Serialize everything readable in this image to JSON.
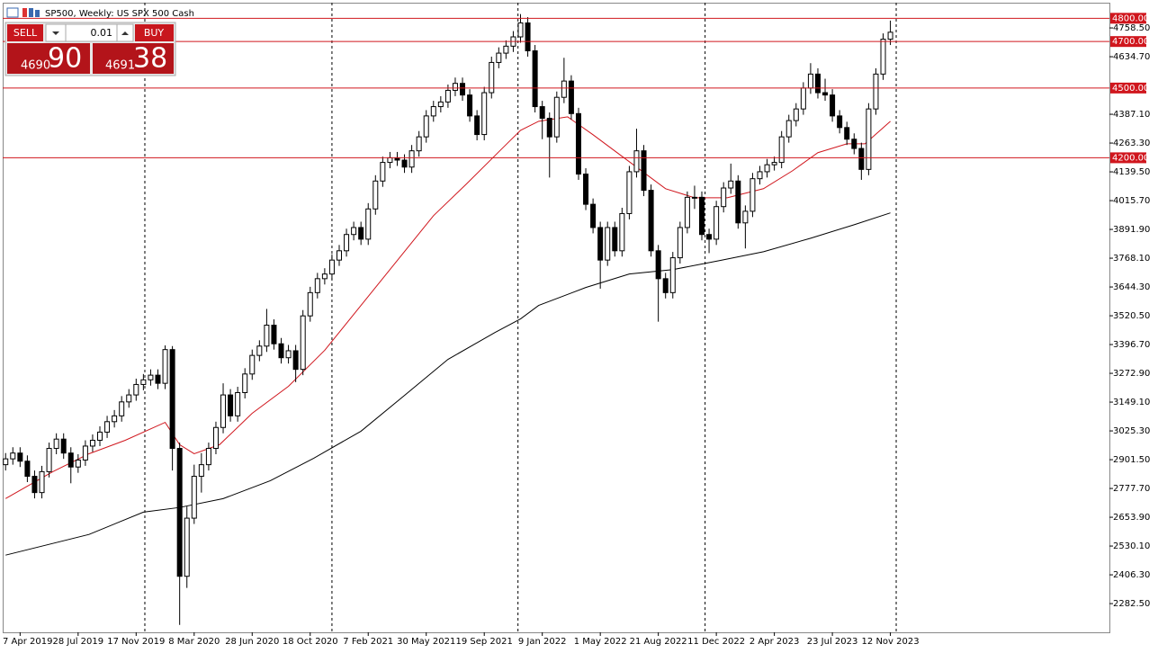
{
  "header": {
    "title": "SP500, Weekly:  US SPX 500 Cash"
  },
  "trade_panel": {
    "sell": "SELL",
    "buy": "BUY",
    "volume": "0.01",
    "bid_big": "4690",
    "bid_small": "90",
    "ask_big": "4691",
    "ask_small": "38"
  },
  "chart_data": {
    "type": "candlestick",
    "xlim": [
      -4.8,
      300.4
    ],
    "ylim": [
      2159,
      4867
    ],
    "xticks": [
      {
        "value": 0,
        "label": "7 Apr 2019"
      },
      {
        "value": 16,
        "label": "28 Jul 2019"
      },
      {
        "value": 32,
        "label": "17 Nov 2019"
      },
      {
        "value": 48,
        "label": "8 Mar 2020"
      },
      {
        "value": 64,
        "label": "28 Jun 2020"
      },
      {
        "value": 80,
        "label": "18 Oct 2020"
      },
      {
        "value": 96,
        "label": "7 Feb 2021"
      },
      {
        "value": 112,
        "label": "30 May 2021"
      },
      {
        "value": 128,
        "label": "19 Sep 2021"
      },
      {
        "value": 144,
        "label": "9 Jan 2022"
      },
      {
        "value": 160,
        "label": "1 May 2022"
      },
      {
        "value": 176,
        "label": "21 Aug 2022"
      },
      {
        "value": 192,
        "label": "11 Dec 2022"
      },
      {
        "value": 208,
        "label": "2 Apr 2023"
      },
      {
        "value": 224,
        "label": "23 Jul 2023"
      },
      {
        "value": 240,
        "label": "12 Nov 2023"
      }
    ],
    "yticks": [
      {
        "value": 4758.5,
        "label": "4758.50"
      },
      {
        "value": 4634.7,
        "label": "4634.70"
      },
      {
        "value": 4387.1,
        "label": "4387.10"
      },
      {
        "value": 4263.3,
        "label": "4263.30"
      },
      {
        "value": 4139.5,
        "label": "4139.50"
      },
      {
        "value": 4015.7,
        "label": "4015.70"
      },
      {
        "value": 3891.9,
        "label": "3891.90"
      },
      {
        "value": 3768.1,
        "label": "3768.10"
      },
      {
        "value": 3644.3,
        "label": "3644.30"
      },
      {
        "value": 3520.5,
        "label": "3520.50"
      },
      {
        "value": 3396.7,
        "label": "3396.70"
      },
      {
        "value": 3272.9,
        "label": "3272.90"
      },
      {
        "value": 3149.1,
        "label": "3149.10"
      },
      {
        "value": 3025.3,
        "label": "3025.30"
      },
      {
        "value": 2901.5,
        "label": "2901.50"
      },
      {
        "value": 2777.7,
        "label": "2777.70"
      },
      {
        "value": 2653.9,
        "label": "2653.90"
      },
      {
        "value": 2530.1,
        "label": "2530.10"
      },
      {
        "value": 2406.3,
        "label": "2406.30"
      },
      {
        "value": 2282.5,
        "label": "2282.50"
      }
    ],
    "levels": [
      {
        "value": 4800,
        "label": "4800.00"
      },
      {
        "value": 4700,
        "label": "4700.00"
      },
      {
        "value": 4500,
        "label": "4500.00"
      },
      {
        "value": 4200,
        "label": "4200.00"
      }
    ],
    "level_color": "#d0161d",
    "separators": [
      34.4,
      86,
      137.3,
      188.9,
      241.6
    ],
    "x": [
      -4,
      -2,
      0,
      2,
      4,
      6,
      8,
      10,
      12,
      14,
      16,
      18,
      20,
      22,
      24,
      26,
      28,
      30,
      32,
      34,
      36,
      38,
      40,
      42,
      44,
      46,
      48,
      50,
      52,
      54,
      56,
      58,
      60,
      62,
      64,
      66,
      68,
      70,
      72,
      74,
      76,
      78,
      80,
      82,
      84,
      86,
      88,
      90,
      92,
      94,
      96,
      98,
      100,
      102,
      104,
      106,
      108,
      110,
      112,
      114,
      116,
      118,
      120,
      122,
      124,
      126,
      128,
      130,
      132,
      134,
      136,
      138,
      140,
      142,
      144,
      146,
      148,
      150,
      152,
      154,
      156,
      158,
      160,
      162,
      164,
      166,
      168,
      170,
      172,
      174,
      176,
      178,
      180,
      182,
      184,
      186,
      188,
      190,
      192,
      194,
      196,
      198,
      200,
      202,
      204,
      206,
      208,
      210,
      212,
      214,
      216,
      218,
      220,
      222,
      224,
      226,
      228,
      230,
      232,
      234,
      236,
      238,
      240
    ],
    "ohlc": [
      [
        2880,
        2930,
        2855,
        2905
      ],
      [
        2905,
        2955,
        2880,
        2930
      ],
      [
        2930,
        2955,
        2870,
        2895
      ],
      [
        2895,
        2920,
        2805,
        2830
      ],
      [
        2830,
        2855,
        2735,
        2760
      ],
      [
        2760,
        2875,
        2735,
        2850
      ],
      [
        2850,
        2975,
        2825,
        2950
      ],
      [
        2950,
        3015,
        2925,
        2990
      ],
      [
        2990,
        3015,
        2905,
        2930
      ],
      [
        2930,
        2955,
        2800,
        2870
      ],
      [
        2870,
        2925,
        2845,
        2900
      ],
      [
        2900,
        2985,
        2875,
        2960
      ],
      [
        2960,
        3010,
        2935,
        2985
      ],
      [
        2985,
        3045,
        2960,
        3020
      ],
      [
        3020,
        3090,
        2995,
        3065
      ],
      [
        3065,
        3115,
        3040,
        3090
      ],
      [
        3090,
        3175,
        3065,
        3150
      ],
      [
        3150,
        3205,
        3125,
        3180
      ],
      [
        3180,
        3250,
        3155,
        3225
      ],
      [
        3225,
        3270,
        3200,
        3245
      ],
      [
        3245,
        3290,
        3220,
        3265
      ],
      [
        3265,
        3290,
        3205,
        3230
      ],
      [
        3230,
        3393,
        3205,
        3375
      ],
      [
        3375,
        3390,
        2855,
        2950
      ],
      [
        2950,
        2975,
        2191,
        2400
      ],
      [
        2400,
        2700,
        2350,
        2650
      ],
      [
        2650,
        2880,
        2625,
        2830
      ],
      [
        2830,
        2930,
        2760,
        2880
      ],
      [
        2880,
        2975,
        2855,
        2950
      ],
      [
        2950,
        3065,
        2925,
        3040
      ],
      [
        3040,
        3230,
        3015,
        3180
      ],
      [
        3180,
        3205,
        3065,
        3090
      ],
      [
        3090,
        3215,
        3065,
        3190
      ],
      [
        3190,
        3295,
        3165,
        3270
      ],
      [
        3270,
        3375,
        3245,
        3350
      ],
      [
        3350,
        3415,
        3325,
        3390
      ],
      [
        3390,
        3550,
        3365,
        3480
      ],
      [
        3480,
        3505,
        3375,
        3400
      ],
      [
        3400,
        3425,
        3315,
        3340
      ],
      [
        3340,
        3395,
        3315,
        3370
      ],
      [
        3370,
        3395,
        3235,
        3290
      ],
      [
        3290,
        3545,
        3265,
        3520
      ],
      [
        3520,
        3645,
        3495,
        3620
      ],
      [
        3620,
        3705,
        3595,
        3680
      ],
      [
        3680,
        3725,
        3655,
        3700
      ],
      [
        3700,
        3785,
        3675,
        3760
      ],
      [
        3760,
        3825,
        3735,
        3800
      ],
      [
        3800,
        3895,
        3775,
        3870
      ],
      [
        3870,
        3925,
        3845,
        3900
      ],
      [
        3900,
        3925,
        3825,
        3850
      ],
      [
        3850,
        4005,
        3825,
        3980
      ],
      [
        3980,
        4125,
        3955,
        4100
      ],
      [
        4100,
        4205,
        4075,
        4180
      ],
      [
        4180,
        4225,
        4155,
        4200
      ],
      [
        4200,
        4225,
        4165,
        4190
      ],
      [
        4190,
        4215,
        4135,
        4160
      ],
      [
        4160,
        4255,
        4135,
        4230
      ],
      [
        4230,
        4315,
        4205,
        4290
      ],
      [
        4290,
        4405,
        4265,
        4380
      ],
      [
        4380,
        4445,
        4355,
        4420
      ],
      [
        4420,
        4465,
        4395,
        4440
      ],
      [
        4440,
        4515,
        4415,
        4490
      ],
      [
        4490,
        4545,
        4465,
        4520
      ],
      [
        4520,
        4545,
        4445,
        4470
      ],
      [
        4470,
        4495,
        4355,
        4380
      ],
      [
        4380,
        4405,
        4275,
        4300
      ],
      [
        4300,
        4505,
        4275,
        4480
      ],
      [
        4480,
        4635,
        4455,
        4610
      ],
      [
        4610,
        4675,
        4585,
        4650
      ],
      [
        4650,
        4705,
        4625,
        4680
      ],
      [
        4680,
        4745,
        4655,
        4720
      ],
      [
        4720,
        4818,
        4695,
        4780
      ],
      [
        4780,
        4805,
        4635,
        4660
      ],
      [
        4660,
        4685,
        4395,
        4420
      ],
      [
        4420,
        4445,
        4280,
        4370
      ],
      [
        4370,
        4395,
        4115,
        4290
      ],
      [
        4290,
        4485,
        4265,
        4460
      ],
      [
        4460,
        4630,
        4435,
        4530
      ],
      [
        4530,
        4555,
        4365,
        4390
      ],
      [
        4390,
        4415,
        4105,
        4130
      ],
      [
        4130,
        4155,
        3975,
        4000
      ],
      [
        4000,
        4025,
        3875,
        3900
      ],
      [
        3900,
        3925,
        3637,
        3760
      ],
      [
        3760,
        3925,
        3735,
        3900
      ],
      [
        3900,
        3925,
        3775,
        3800
      ],
      [
        3800,
        3985,
        3775,
        3960
      ],
      [
        3960,
        4165,
        3935,
        4140
      ],
      [
        4140,
        4325,
        4115,
        4230
      ],
      [
        4230,
        4255,
        4035,
        4060
      ],
      [
        4060,
        4085,
        3775,
        3800
      ],
      [
        3800,
        3825,
        3495,
        3680
      ],
      [
        3680,
        3705,
        3595,
        3620
      ],
      [
        3620,
        3795,
        3595,
        3770
      ],
      [
        3770,
        3925,
        3745,
        3900
      ],
      [
        3900,
        4055,
        3875,
        4030
      ],
      [
        4030,
        4080,
        3980,
        4030
      ],
      [
        4030,
        4055,
        3845,
        3870
      ],
      [
        3870,
        3895,
        3790,
        3850
      ],
      [
        3850,
        4015,
        3825,
        3990
      ],
      [
        3990,
        4095,
        3965,
        4070
      ],
      [
        4070,
        4175,
        4045,
        4100
      ],
      [
        4100,
        4125,
        3895,
        3920
      ],
      [
        3920,
        3995,
        3810,
        3970
      ],
      [
        3970,
        4135,
        3945,
        4110
      ],
      [
        4110,
        4165,
        4085,
        4140
      ],
      [
        4140,
        4195,
        4115,
        4170
      ],
      [
        4170,
        4205,
        4145,
        4180
      ],
      [
        4180,
        4315,
        4155,
        4290
      ],
      [
        4290,
        4385,
        4265,
        4360
      ],
      [
        4360,
        4435,
        4335,
        4410
      ],
      [
        4410,
        4525,
        4385,
        4500
      ],
      [
        4500,
        4607,
        4475,
        4560
      ],
      [
        4560,
        4585,
        4455,
        4480
      ],
      [
        4480,
        4540,
        4445,
        4470
      ],
      [
        4470,
        4495,
        4355,
        4380
      ],
      [
        4380,
        4405,
        4305,
        4330
      ],
      [
        4330,
        4355,
        4255,
        4280
      ],
      [
        4280,
        4305,
        4215,
        4240
      ],
      [
        4240,
        4265,
        4105,
        4150
      ],
      [
        4150,
        4435,
        4125,
        4410
      ],
      [
        4410,
        4585,
        4385,
        4560
      ],
      [
        4560,
        4735,
        4535,
        4710
      ],
      [
        4710,
        4790,
        4685,
        4740
      ]
    ],
    "moving_averages": [
      {
        "color": "#d0161d",
        "x": [
          -4,
          9,
          19,
          29,
          40,
          44,
          48,
          55,
          64,
          74,
          84,
          94,
          104,
          114,
          123,
          133,
          138,
          143,
          151,
          158,
          168,
          178,
          186,
          195,
          205,
          213,
          220,
          228,
          233,
          240
        ],
        "values": [
          2734,
          2850,
          2927,
          2985,
          3062,
          2966,
          2927,
          2966,
          3101,
          3217,
          3372,
          3565,
          3758,
          3951,
          4086,
          4241,
          4318,
          4357,
          4376,
          4299,
          4183,
          4067,
          4028,
          4028,
          4067,
          4144,
          4222,
          4260,
          4260,
          4357
        ]
      },
      {
        "color": "#000000",
        "x": [
          -4,
          19,
          34,
          44,
          56,
          69,
          81,
          94,
          106,
          118,
          131,
          138,
          143,
          156,
          168,
          180,
          193,
          205,
          218,
          230,
          240
        ],
        "values": [
          2491,
          2580,
          2676,
          2696,
          2734,
          2811,
          2908,
          3024,
          3178,
          3333,
          3449,
          3507,
          3565,
          3642,
          3700,
          3719,
          3758,
          3796,
          3854,
          3912,
          3963
        ]
      }
    ]
  }
}
